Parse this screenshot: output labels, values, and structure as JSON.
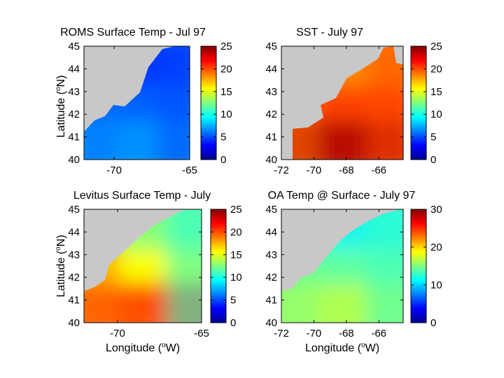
{
  "figure": {
    "xlabel": "Longitude (",
    "xlabel_sup": "o",
    "xlabel_tail": "W)",
    "ylabel": "Latitude (",
    "ylabel_sup": "o",
    "ylabel_tail": "N)"
  },
  "chart_data": [
    {
      "type": "heatmap",
      "title": "ROMS Surface Temp - Jul 97",
      "xlim": [
        -72,
        -65
      ],
      "ylim": [
        40,
        45
      ],
      "xticks": [
        -70,
        -65
      ],
      "yticks": [
        40,
        41,
        42,
        43,
        44,
        45
      ],
      "colorbar": {
        "range": [
          0,
          25
        ],
        "ticks": [
          0,
          5,
          10,
          15,
          20,
          25
        ],
        "colormap": "jet"
      },
      "field": {
        "north": 4,
        "south": 7,
        "east": 5,
        "west": 6
      }
    },
    {
      "type": "heatmap",
      "title": "SST - July 97",
      "xlim": [
        -72,
        -64.5
      ],
      "ylim": [
        40,
        45
      ],
      "xticks": [
        -72,
        -70,
        -68,
        -66
      ],
      "yticks": [
        40,
        41,
        42,
        43,
        44,
        45
      ],
      "colorbar": {
        "range": [
          0,
          25
        ],
        "ticks": [
          0,
          5,
          10,
          15,
          20,
          25
        ],
        "colormap": "jet"
      },
      "field": {
        "north": 18,
        "south": 24,
        "east": 20,
        "west": 19
      }
    },
    {
      "type": "heatmap",
      "title": "Levitus Surface Temp - July",
      "xlim": [
        -72,
        -65
      ],
      "ylim": [
        40,
        45
      ],
      "xticks": [
        -70,
        -65
      ],
      "yticks": [
        40,
        41,
        42,
        43,
        44,
        45
      ],
      "colorbar": {
        "range": [
          0,
          25
        ],
        "ticks": [
          0,
          5,
          10,
          15,
          20,
          25
        ],
        "colormap": "jet"
      },
      "field": {
        "north": 12,
        "south": 21,
        "east": 10,
        "west": 19
      }
    },
    {
      "type": "heatmap",
      "title": "OA Temp @ Surface - July 97",
      "xlim": [
        -72,
        -64.5
      ],
      "ylim": [
        40,
        45
      ],
      "xticks": [
        -72,
        -70,
        -68,
        -66
      ],
      "yticks": [
        40,
        41,
        42,
        43,
        44,
        45
      ],
      "colorbar": {
        "range": [
          0,
          30
        ],
        "ticks": [
          0,
          10,
          20,
          30
        ],
        "colormap": "jet"
      },
      "field": {
        "north": 11,
        "south": 17,
        "east": 13,
        "west": 15
      }
    }
  ]
}
